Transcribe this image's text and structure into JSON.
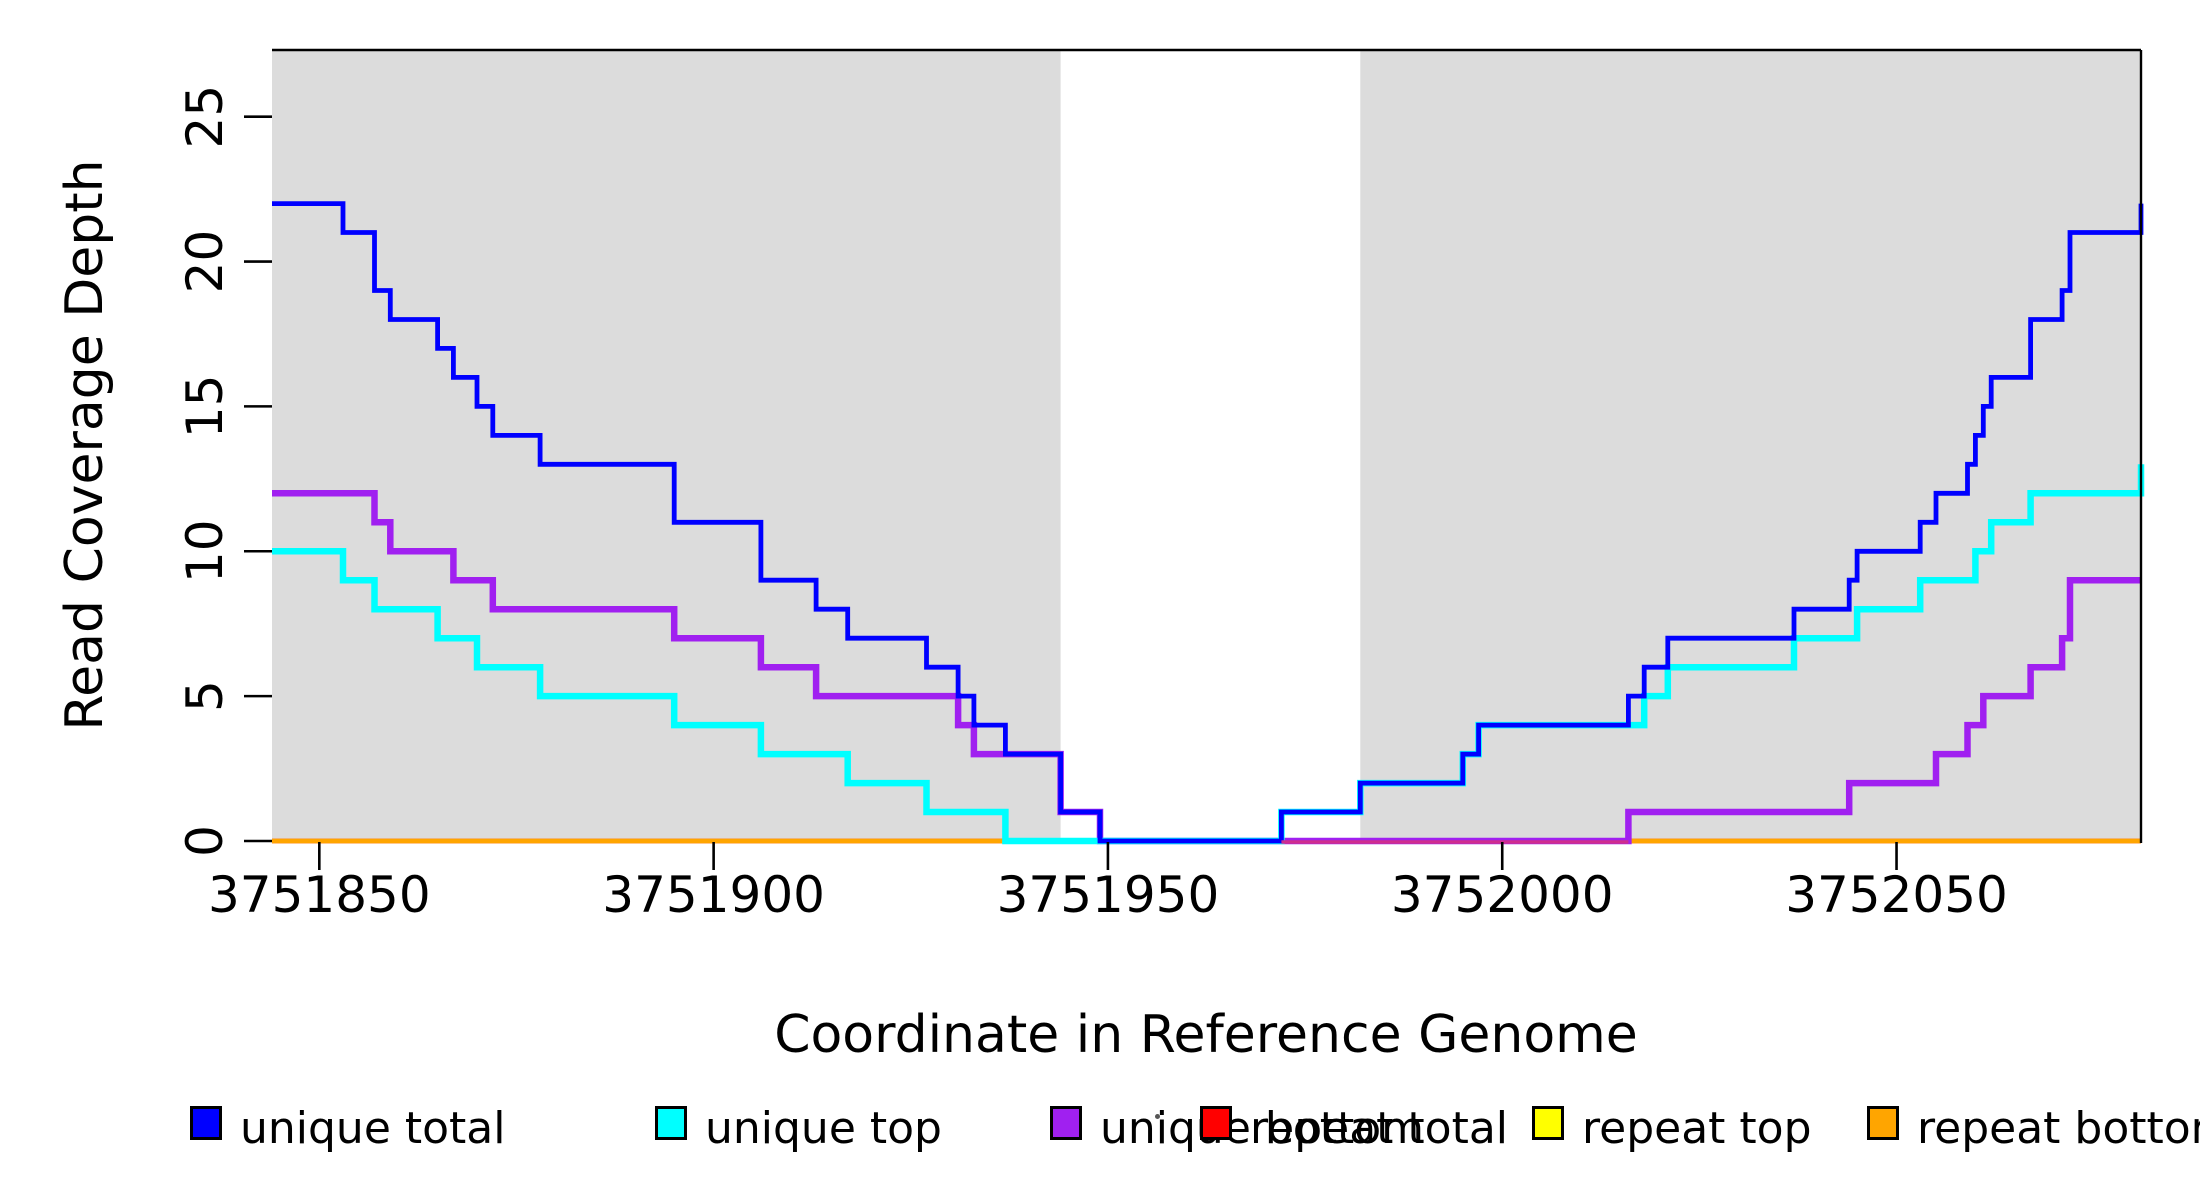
{
  "figure": {
    "x_axis_label": "Coordinate in Reference Genome",
    "y_axis_label": "Read Coverage Depth"
  },
  "chart_data": {
    "type": "line",
    "subtype": "step",
    "title": "",
    "xlabel": "Coordinate in Reference Genome",
    "ylabel": "Read Coverage Depth",
    "xlim": [
      3751844,
      3752081
    ],
    "ylim": [
      0,
      27.3
    ],
    "grid": false,
    "legend_position": "bottom",
    "x_ticks": [
      {
        "value": 3751850,
        "label": "3751850"
      },
      {
        "value": 3751900,
        "label": "3751900"
      },
      {
        "value": 3751950,
        "label": "3751950"
      },
      {
        "value": 3752000,
        "label": "3752000"
      },
      {
        "value": 3752050,
        "label": "3752050"
      }
    ],
    "y_ticks": [
      {
        "value": 0,
        "label": "0"
      },
      {
        "value": 5,
        "label": "5"
      },
      {
        "value": 10,
        "label": "10"
      },
      {
        "value": 15,
        "label": "15"
      },
      {
        "value": 20,
        "label": "20"
      },
      {
        "value": 25,
        "label": "25"
      }
    ],
    "shaded_regions": [
      {
        "x0": 3751844,
        "x1": 3751944,
        "color": "#DCDCDC"
      },
      {
        "x0": 3751982,
        "x1": 3752081,
        "color": "#DCDCDC"
      }
    ],
    "baseline_overlay": {
      "x0": 3751972,
      "x1": 3752016,
      "color": "#CE2E8F"
    },
    "series": [
      {
        "name": "repeat top",
        "color": "#FFFF00",
        "width": 4.5,
        "points": [
          [
            3751844,
            0
          ],
          [
            3752081,
            0
          ]
        ]
      },
      {
        "name": "repeat total",
        "color": "#FF0000",
        "width": 4.5,
        "points": [
          [
            3751844,
            0
          ],
          [
            3752081,
            0
          ]
        ]
      },
      {
        "name": "repeat bottom",
        "color": "#FFA500",
        "width": 4.5,
        "points": [
          [
            3751844,
            0
          ],
          [
            3752081,
            0
          ]
        ]
      },
      {
        "name": "unique bottom",
        "color": "#A020F0",
        "width": 6.5,
        "points": [
          [
            3751844,
            12
          ],
          [
            3751857,
            11
          ],
          [
            3751859,
            10
          ],
          [
            3751867,
            9
          ],
          [
            3751872,
            8
          ],
          [
            3751895,
            7
          ],
          [
            3751906,
            6
          ],
          [
            3751913,
            5
          ],
          [
            3751931,
            4
          ],
          [
            3751933,
            3
          ],
          [
            3751944,
            1
          ],
          [
            3751949,
            0
          ],
          [
            3752016,
            1
          ],
          [
            3752044,
            2
          ],
          [
            3752055,
            3
          ],
          [
            3752059,
            4
          ],
          [
            3752061,
            5
          ],
          [
            3752067,
            6
          ],
          [
            3752071,
            7
          ],
          [
            3752072,
            9
          ]
        ]
      },
      {
        "name": "unique top",
        "color": "#00FFFF",
        "width": 6.5,
        "points": [
          [
            3751844,
            10
          ],
          [
            3751853,
            9
          ],
          [
            3751857,
            8
          ],
          [
            3751865,
            7
          ],
          [
            3751870,
            6
          ],
          [
            3751878,
            5
          ],
          [
            3751895,
            4
          ],
          [
            3751906,
            3
          ],
          [
            3751917,
            2
          ],
          [
            3751927,
            1
          ],
          [
            3751937,
            0
          ],
          [
            3751972,
            1
          ],
          [
            3751982,
            2
          ],
          [
            3751995,
            3
          ],
          [
            3751997,
            4
          ],
          [
            3752018,
            5
          ],
          [
            3752021,
            6
          ],
          [
            3752037,
            7
          ],
          [
            3752045,
            8
          ],
          [
            3752053,
            9
          ],
          [
            3752060,
            10
          ],
          [
            3752062,
            11
          ],
          [
            3752067,
            12
          ],
          [
            3752081,
            13
          ]
        ]
      },
      {
        "name": "unique total",
        "color": "#0000FF",
        "width": 4.8,
        "points": [
          [
            3751844,
            22
          ],
          [
            3751853,
            21
          ],
          [
            3751857,
            19
          ],
          [
            3751859,
            18
          ],
          [
            3751865,
            17
          ],
          [
            3751867,
            16
          ],
          [
            3751870,
            15
          ],
          [
            3751872,
            14
          ],
          [
            3751878,
            13
          ],
          [
            3751895,
            11
          ],
          [
            3751906,
            9
          ],
          [
            3751913,
            8
          ],
          [
            3751917,
            7
          ],
          [
            3751927,
            6
          ],
          [
            3751931,
            5
          ],
          [
            3751933,
            4
          ],
          [
            3751937,
            3
          ],
          [
            3751944,
            1
          ],
          [
            3751949,
            0
          ],
          [
            3751972,
            1
          ],
          [
            3751982,
            2
          ],
          [
            3751995,
            3
          ],
          [
            3751997,
            4
          ],
          [
            3752016,
            5
          ],
          [
            3752018,
            6
          ],
          [
            3752021,
            7
          ],
          [
            3752037,
            8
          ],
          [
            3752044,
            9
          ],
          [
            3752045,
            10
          ],
          [
            3752053,
            11
          ],
          [
            3752055,
            12
          ],
          [
            3752059,
            13
          ],
          [
            3752060,
            14
          ],
          [
            3752061,
            15
          ],
          [
            3752062,
            16
          ],
          [
            3752067,
            18
          ],
          [
            3752071,
            19
          ],
          [
            3752072,
            21
          ],
          [
            3752081,
            22
          ]
        ]
      }
    ],
    "legend": [
      {
        "label": "unique total",
        "color": "#0000FF"
      },
      {
        "label": "unique top",
        "color": "#00FFFF"
      },
      {
        "label": "unique bottom",
        "color": "#A020F0"
      },
      {
        "label": "repeat total",
        "color": "#FF0000"
      },
      {
        "label": "repeat top",
        "color": "#FFFF00"
      },
      {
        "label": "repeat bottom",
        "color": "#FFA500"
      }
    ]
  }
}
